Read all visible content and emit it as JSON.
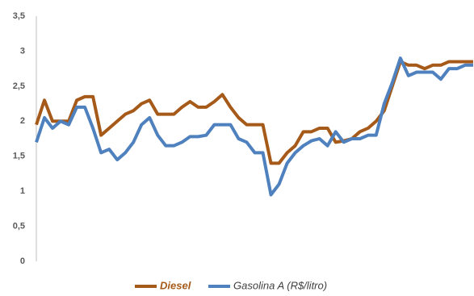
{
  "chart_data": {
    "type": "line",
    "series": [
      {
        "name": "Diesel",
        "color": "#a65a19",
        "values": [
          1.95,
          2.3,
          2.0,
          2.0,
          2.0,
          2.3,
          2.35,
          2.35,
          1.8,
          1.9,
          2.0,
          2.1,
          2.15,
          2.25,
          2.3,
          2.1,
          2.1,
          2.1,
          2.2,
          2.28,
          2.2,
          2.2,
          2.28,
          2.38,
          2.2,
          2.05,
          1.95,
          1.95,
          1.95,
          1.4,
          1.4,
          1.55,
          1.65,
          1.85,
          1.85,
          1.9,
          1.9,
          1.7,
          1.72,
          1.75,
          1.85,
          1.9,
          2.0,
          2.15,
          2.5,
          2.85,
          2.8,
          2.8,
          2.75,
          2.8,
          2.8,
          2.85,
          2.85,
          2.85,
          2.85
        ]
      },
      {
        "name": "Gasolina A (R$/litro)",
        "color": "#4e81bd",
        "values": [
          1.7,
          2.05,
          1.9,
          2.0,
          1.95,
          2.2,
          2.2,
          1.9,
          1.55,
          1.6,
          1.45,
          1.55,
          1.7,
          1.95,
          2.05,
          1.8,
          1.65,
          1.65,
          1.7,
          1.78,
          1.78,
          1.8,
          1.95,
          1.95,
          1.95,
          1.75,
          1.7,
          1.55,
          1.55,
          0.95,
          1.1,
          1.4,
          1.55,
          1.65,
          1.72,
          1.75,
          1.65,
          1.85,
          1.7,
          1.75,
          1.75,
          1.8,
          1.8,
          2.25,
          2.55,
          2.9,
          2.65,
          2.7,
          2.7,
          2.7,
          2.6,
          2.75,
          2.75,
          2.8,
          2.8
        ]
      }
    ],
    "ylim": [
      0,
      3.5
    ],
    "yticks": [
      0,
      {
        "value": 0.5,
        "label": "0,5"
      },
      1,
      {
        "value": 1.5,
        "label": "1,5"
      },
      2,
      {
        "value": 2.5,
        "label": "2,5"
      },
      3,
      {
        "value": 3.5,
        "label": "3,5"
      }
    ],
    "grid": false,
    "legend": "bottom"
  }
}
